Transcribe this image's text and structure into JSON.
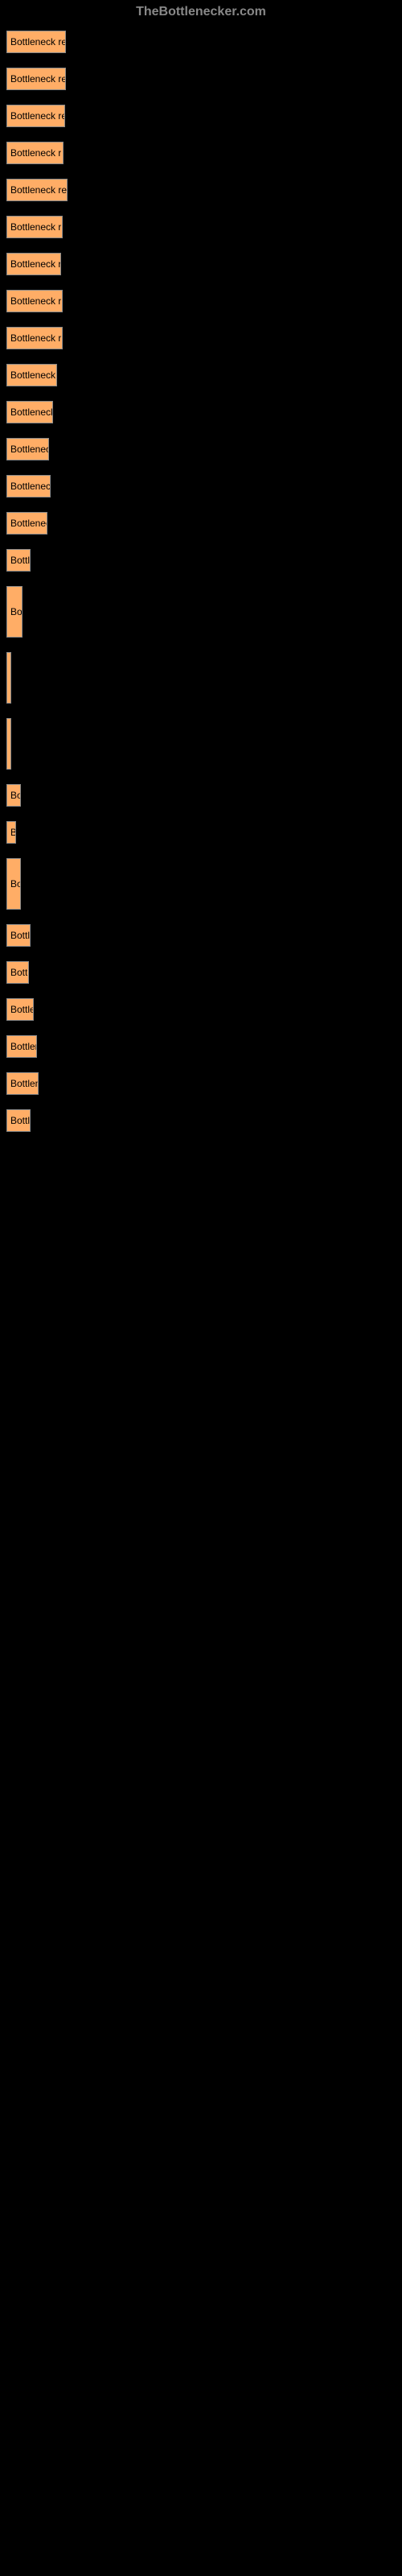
{
  "header": {
    "title": "TheBottlenecker.com"
  },
  "chart": {
    "type": "bar",
    "bar_color": "#ffad66",
    "border_color": "#888888",
    "background_color": "#000000",
    "text_color": "#000000",
    "font_size": 12,
    "max_width": 480,
    "bars": [
      {
        "label": "Bottleneck re",
        "width": 74,
        "height": 28
      },
      {
        "label": "Bottleneck re",
        "width": 74,
        "height": 28
      },
      {
        "label": "Bottleneck re",
        "width": 73,
        "height": 28
      },
      {
        "label": "Bottleneck r",
        "width": 71,
        "height": 28
      },
      {
        "label": "Bottleneck re",
        "width": 76,
        "height": 28
      },
      {
        "label": "Bottleneck r",
        "width": 70,
        "height": 28
      },
      {
        "label": "Bottleneck r",
        "width": 68,
        "height": 28
      },
      {
        "label": "Bottleneck r",
        "width": 70,
        "height": 28
      },
      {
        "label": "Bottleneck r",
        "width": 70,
        "height": 28
      },
      {
        "label": "Bottleneck",
        "width": 63,
        "height": 28
      },
      {
        "label": "Bottleneck",
        "width": 58,
        "height": 28
      },
      {
        "label": "Bottlenec",
        "width": 53,
        "height": 28
      },
      {
        "label": "Bottlenec",
        "width": 55,
        "height": 28
      },
      {
        "label": "Bottlenec",
        "width": 51,
        "height": 28
      },
      {
        "label": "Bottl",
        "width": 30,
        "height": 28
      },
      {
        "label": "Bo",
        "width": 20,
        "height": 64
      },
      {
        "label": "",
        "width": 4,
        "height": 64
      },
      {
        "label": "",
        "width": 4,
        "height": 64
      },
      {
        "label": "Bo",
        "width": 18,
        "height": 28
      },
      {
        "label": "B",
        "width": 12,
        "height": 28
      },
      {
        "label": "Bo",
        "width": 18,
        "height": 64
      },
      {
        "label": "Bottl",
        "width": 30,
        "height": 28
      },
      {
        "label": "Bott",
        "width": 28,
        "height": 28
      },
      {
        "label": "Bottle",
        "width": 34,
        "height": 28
      },
      {
        "label": "Bottler",
        "width": 38,
        "height": 28
      },
      {
        "label": "Bottlen",
        "width": 40,
        "height": 28
      },
      {
        "label": "Bottl",
        "width": 30,
        "height": 28
      }
    ]
  }
}
